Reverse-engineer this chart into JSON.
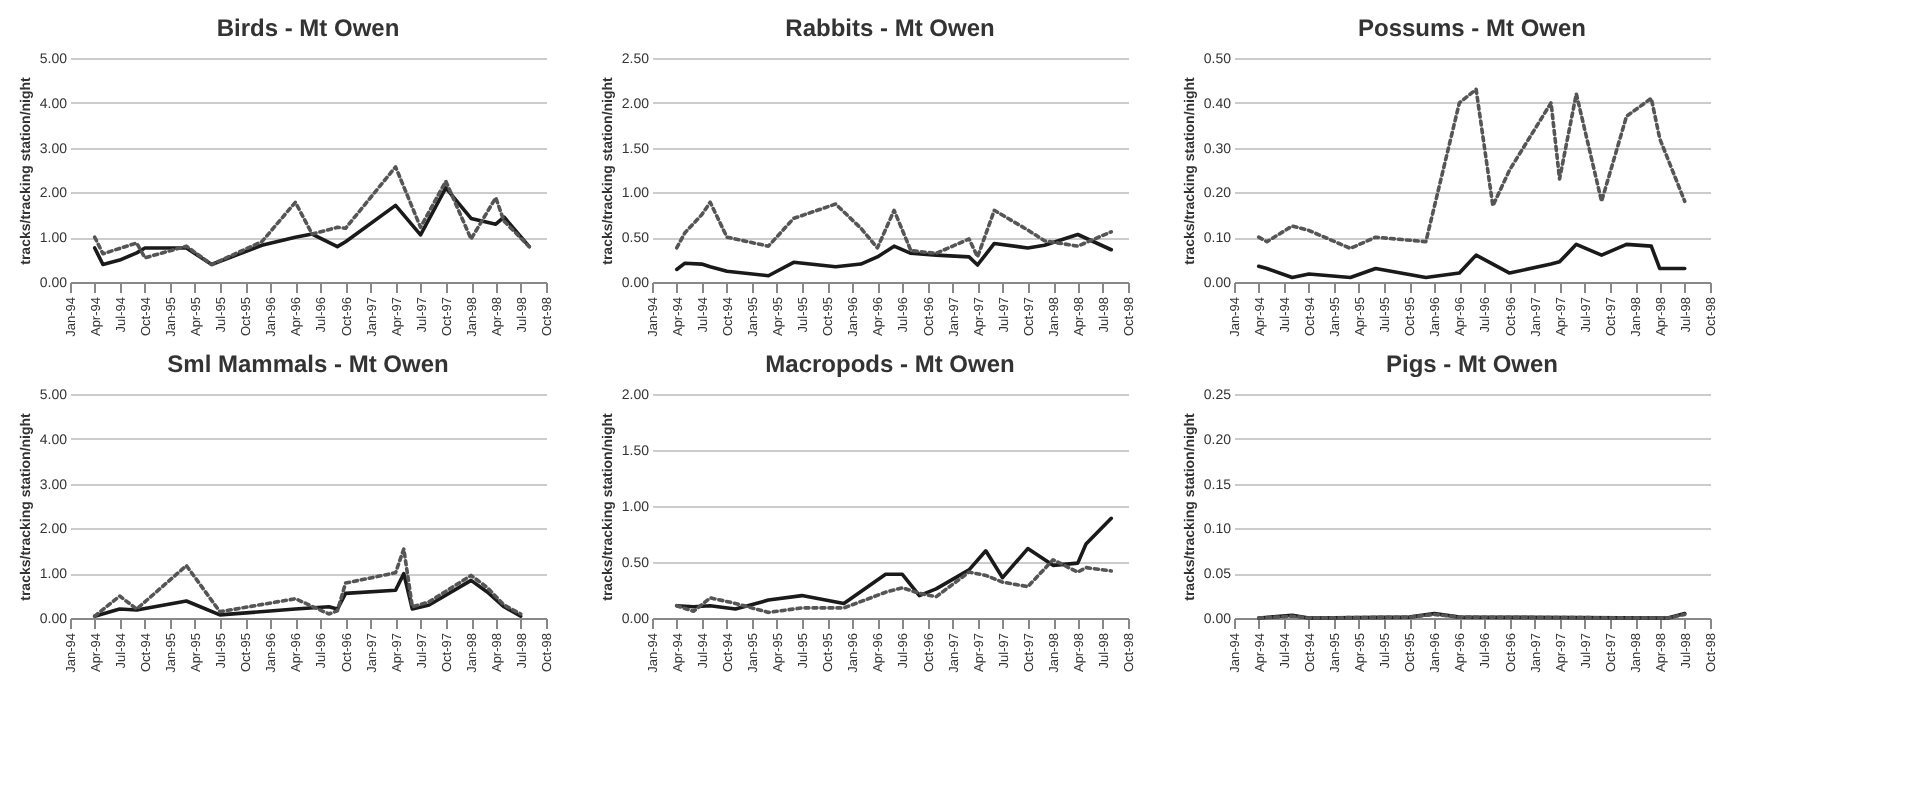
{
  "chart_data": [
    {
      "type": "line",
      "title": "Birds - Mt Owen",
      "ylabel": "tracks/tracking station/night",
      "grid": "y",
      "ylim": [
        0,
        5
      ],
      "yticks": [
        {
          "value": 0,
          "label": "0.00"
        },
        {
          "value": 1,
          "label": "1.00"
        },
        {
          "value": 2,
          "label": "2.00"
        },
        {
          "value": 3,
          "label": "3.00"
        },
        {
          "value": 4,
          "label": "4.00"
        },
        {
          "value": 5,
          "label": "5.00"
        }
      ],
      "xlim": [
        "1994-01",
        "1998-10"
      ],
      "xticks": [
        {
          "value": "1994-01",
          "label": "Jan-94"
        },
        {
          "value": "1994-04",
          "label": "Apr-94"
        },
        {
          "value": "1994-07",
          "label": "Jul-94"
        },
        {
          "value": "1994-10",
          "label": "Oct-94"
        },
        {
          "value": "1995-01",
          "label": "Jan-95"
        },
        {
          "value": "1995-04",
          "label": "Apr-95"
        },
        {
          "value": "1995-07",
          "label": "Jul-95"
        },
        {
          "value": "1995-10",
          "label": "Oct-95"
        },
        {
          "value": "1996-01",
          "label": "Jan-96"
        },
        {
          "value": "1996-04",
          "label": "Apr-96"
        },
        {
          "value": "1996-07",
          "label": "Jul-96"
        },
        {
          "value": "1996-10",
          "label": "Oct-96"
        },
        {
          "value": "1997-01",
          "label": "Jan-97"
        },
        {
          "value": "1997-04",
          "label": "Apr-97"
        },
        {
          "value": "1997-07",
          "label": "Jul-97"
        },
        {
          "value": "1997-10",
          "label": "Oct-97"
        },
        {
          "value": "1998-01",
          "label": "Jan-98"
        },
        {
          "value": "1998-04",
          "label": "Apr-98"
        },
        {
          "value": "1998-07",
          "label": "Jul-98"
        },
        {
          "value": "1998-10",
          "label": "Oct-98"
        }
      ],
      "x": [
        "1994-04",
        "1994-05",
        "1994-07",
        "1994-09",
        "1994-10",
        "1995-03",
        "1995-06",
        "1995-12",
        "1996-04",
        "1996-06",
        "1996-09",
        "1996-10",
        "1997-04",
        "1997-07",
        "1997-10",
        "1998-01",
        "1998-04",
        "1998-05",
        "1998-08"
      ],
      "series": [
        {
          "color": "#1a1a1a",
          "line_style": "solid",
          "values": [
            0.76,
            0.39,
            0.49,
            0.65,
            0.76,
            0.76,
            0.39,
            0.82,
            1.0,
            1.07,
            0.79,
            0.9,
            1.71,
            1.05,
            2.1,
            1.42,
            1.29,
            1.45,
            0.79
          ]
        },
        {
          "color": "#555555",
          "line_style": "dotted",
          "values": [
            1.0,
            0.63,
            0.75,
            0.87,
            0.54,
            0.8,
            0.39,
            0.9,
            1.78,
            1.07,
            1.22,
            1.2,
            2.57,
            1.22,
            2.25,
            0.96,
            1.88,
            1.36,
            0.79
          ]
        }
      ]
    },
    {
      "type": "line",
      "title": "Rabbits - Mt Owen",
      "ylabel": "tracks/tracking station/night",
      "grid": "y",
      "ylim": [
        0,
        2.5
      ],
      "yticks": [
        {
          "value": 0,
          "label": "0.00"
        },
        {
          "value": 0.5,
          "label": "0.50"
        },
        {
          "value": 1,
          "label": "1.00"
        },
        {
          "value": 1.5,
          "label": "1.50"
        },
        {
          "value": 2,
          "label": "2.00"
        },
        {
          "value": 2.5,
          "label": "2.50"
        }
      ],
      "xlim": [
        "1994-01",
        "1998-10"
      ],
      "xticks": [
        {
          "value": "1994-01",
          "label": "Jan-94"
        },
        {
          "value": "1994-04",
          "label": "Apr-94"
        },
        {
          "value": "1994-07",
          "label": "Jul-94"
        },
        {
          "value": "1994-10",
          "label": "Oct-94"
        },
        {
          "value": "1995-01",
          "label": "Jan-95"
        },
        {
          "value": "1995-04",
          "label": "Apr-95"
        },
        {
          "value": "1995-07",
          "label": "Jul-95"
        },
        {
          "value": "1995-10",
          "label": "Oct-95"
        },
        {
          "value": "1996-01",
          "label": "Jan-96"
        },
        {
          "value": "1996-04",
          "label": "Apr-96"
        },
        {
          "value": "1996-07",
          "label": "Jul-96"
        },
        {
          "value": "1996-10",
          "label": "Oct-96"
        },
        {
          "value": "1997-01",
          "label": "Jan-97"
        },
        {
          "value": "1997-04",
          "label": "Apr-97"
        },
        {
          "value": "1997-07",
          "label": "Jul-97"
        },
        {
          "value": "1997-10",
          "label": "Oct-97"
        },
        {
          "value": "1998-01",
          "label": "Jan-98"
        },
        {
          "value": "1998-04",
          "label": "Apr-98"
        },
        {
          "value": "1998-07",
          "label": "Jul-98"
        },
        {
          "value": "1998-10",
          "label": "Oct-98"
        }
      ],
      "x": [
        "1994-04",
        "1994-05",
        "1994-07",
        "1994-08",
        "1994-10",
        "1995-03",
        "1995-06",
        "1995-11",
        "1996-02",
        "1996-04",
        "1996-06",
        "1996-08",
        "1996-11",
        "1997-03",
        "1997-04",
        "1997-06",
        "1997-10",
        "1997-12",
        "1998-04",
        "1998-08"
      ],
      "series": [
        {
          "color": "#1a1a1a",
          "line_style": "solid",
          "values": [
            0.14,
            0.21,
            0.2,
            0.17,
            0.12,
            0.07,
            0.22,
            0.17,
            0.2,
            0.28,
            0.4,
            0.32,
            0.3,
            0.28,
            0.19,
            0.43,
            0.38,
            0.41,
            0.53,
            0.36
          ]
        },
        {
          "color": "#555555",
          "line_style": "dotted",
          "values": [
            0.38,
            0.55,
            0.75,
            0.89,
            0.5,
            0.4,
            0.71,
            0.87,
            0.6,
            0.38,
            0.8,
            0.35,
            0.32,
            0.48,
            0.28,
            0.8,
            0.58,
            0.46,
            0.4,
            0.56
          ]
        }
      ]
    },
    {
      "type": "line",
      "title": "Possums - Mt Owen",
      "ylabel": "tracks/tracking station/night",
      "grid": "y",
      "ylim": [
        0,
        0.5
      ],
      "yticks": [
        {
          "value": 0,
          "label": "0.00"
        },
        {
          "value": 0.1,
          "label": "0.10"
        },
        {
          "value": 0.2,
          "label": "0.20"
        },
        {
          "value": 0.3,
          "label": "0.30"
        },
        {
          "value": 0.4,
          "label": "0.40"
        },
        {
          "value": 0.5,
          "label": "0.50"
        }
      ],
      "xlim": [
        "1994-01",
        "1998-10"
      ],
      "xticks": [
        {
          "value": "1994-01",
          "label": "Jan-94"
        },
        {
          "value": "1994-04",
          "label": "Apr-94"
        },
        {
          "value": "1994-07",
          "label": "Jul-94"
        },
        {
          "value": "1994-10",
          "label": "Oct-94"
        },
        {
          "value": "1995-01",
          "label": "Jan-95"
        },
        {
          "value": "1995-04",
          "label": "Apr-95"
        },
        {
          "value": "1995-07",
          "label": "Jul-95"
        },
        {
          "value": "1995-10",
          "label": "Oct-95"
        },
        {
          "value": "1996-01",
          "label": "Jan-96"
        },
        {
          "value": "1996-04",
          "label": "Apr-96"
        },
        {
          "value": "1996-07",
          "label": "Jul-96"
        },
        {
          "value": "1996-10",
          "label": "Oct-96"
        },
        {
          "value": "1997-01",
          "label": "Jan-97"
        },
        {
          "value": "1997-04",
          "label": "Apr-97"
        },
        {
          "value": "1997-07",
          "label": "Jul-97"
        },
        {
          "value": "1997-10",
          "label": "Oct-97"
        },
        {
          "value": "1998-01",
          "label": "Jan-98"
        },
        {
          "value": "1998-04",
          "label": "Apr-98"
        },
        {
          "value": "1998-07",
          "label": "Jul-98"
        },
        {
          "value": "1998-10",
          "label": "Oct-98"
        }
      ],
      "x": [
        "1994-04",
        "1994-05",
        "1994-08",
        "1994-10",
        "1995-03",
        "1995-06",
        "1995-12",
        "1996-04",
        "1996-06",
        "1996-08",
        "1996-10",
        "1997-03",
        "1997-04",
        "1997-06",
        "1997-09",
        "1997-12",
        "1998-03",
        "1998-04",
        "1998-07"
      ],
      "series": [
        {
          "color": "#1a1a1a",
          "line_style": "solid",
          "values": [
            0.035,
            0.03,
            0.01,
            0.018,
            0.01,
            0.03,
            0.01,
            0.02,
            0.06,
            0.04,
            0.02,
            0.04,
            0.045,
            0.084,
            0.06,
            0.084,
            0.08,
            0.03,
            0.03
          ]
        },
        {
          "color": "#555555",
          "line_style": "dotted",
          "values": [
            0.1,
            0.09,
            0.125,
            0.115,
            0.075,
            0.1,
            0.09,
            0.4,
            0.43,
            0.17,
            0.25,
            0.4,
            0.23,
            0.42,
            0.18,
            0.37,
            0.41,
            0.32,
            0.18
          ]
        }
      ]
    },
    {
      "type": "line",
      "title": "Sml Mammals - Mt Owen",
      "ylabel": "tracks/tracking station/night",
      "grid": "y",
      "ylim": [
        0,
        5
      ],
      "yticks": [
        {
          "value": 0,
          "label": "0.00"
        },
        {
          "value": 1,
          "label": "1.00"
        },
        {
          "value": 2,
          "label": "2.00"
        },
        {
          "value": 3,
          "label": "3.00"
        },
        {
          "value": 4,
          "label": "4.00"
        },
        {
          "value": 5,
          "label": "5.00"
        }
      ],
      "xlim": [
        "1994-01",
        "1998-10"
      ],
      "xticks": [
        {
          "value": "1994-01",
          "label": "Jan-94"
        },
        {
          "value": "1994-04",
          "label": "Apr-94"
        },
        {
          "value": "1994-07",
          "label": "Jul-94"
        },
        {
          "value": "1994-10",
          "label": "Oct-94"
        },
        {
          "value": "1995-01",
          "label": "Jan-95"
        },
        {
          "value": "1995-04",
          "label": "Apr-95"
        },
        {
          "value": "1995-07",
          "label": "Jul-95"
        },
        {
          "value": "1995-10",
          "label": "Oct-95"
        },
        {
          "value": "1996-01",
          "label": "Jan-96"
        },
        {
          "value": "1996-04",
          "label": "Apr-96"
        },
        {
          "value": "1996-07",
          "label": "Jul-96"
        },
        {
          "value": "1996-10",
          "label": "Oct-96"
        },
        {
          "value": "1997-01",
          "label": "Jan-97"
        },
        {
          "value": "1997-04",
          "label": "Apr-97"
        },
        {
          "value": "1997-07",
          "label": "Jul-97"
        },
        {
          "value": "1997-10",
          "label": "Oct-97"
        },
        {
          "value": "1998-01",
          "label": "Jan-98"
        },
        {
          "value": "1998-04",
          "label": "Apr-98"
        },
        {
          "value": "1998-07",
          "label": "Jul-98"
        },
        {
          "value": "1998-10",
          "label": "Oct-98"
        }
      ],
      "x": [
        "1994-04",
        "1994-07",
        "1994-09",
        "1995-03",
        "1995-07",
        "1996-04",
        "1996-08",
        "1996-09",
        "1996-10",
        "1997-04",
        "1997-05",
        "1997-06",
        "1997-08",
        "1998-01",
        "1998-03",
        "1998-05",
        "1998-07"
      ],
      "series": [
        {
          "color": "#1a1a1a",
          "line_style": "solid",
          "values": [
            0.04,
            0.2,
            0.18,
            0.38,
            0.07,
            0.2,
            0.25,
            0.2,
            0.55,
            0.62,
            0.99,
            0.2,
            0.29,
            0.84,
            0.58,
            0.25,
            0.04
          ]
        },
        {
          "color": "#555555",
          "line_style": "dotted",
          "values": [
            0.04,
            0.49,
            0.2,
            1.17,
            0.14,
            0.43,
            0.09,
            0.16,
            0.78,
            1.01,
            1.54,
            0.25,
            0.36,
            0.95,
            0.68,
            0.29,
            0.09
          ]
        }
      ]
    },
    {
      "type": "line",
      "title": "Macropods - Mt Owen",
      "ylabel": "tracks/tracking station/night",
      "grid": "y",
      "ylim": [
        0,
        2
      ],
      "yticks": [
        {
          "value": 0,
          "label": "0.00"
        },
        {
          "value": 0.5,
          "label": "0.50"
        },
        {
          "value": 1,
          "label": "1.00"
        },
        {
          "value": 1.5,
          "label": "1.50"
        },
        {
          "value": 2,
          "label": "2.00"
        }
      ],
      "xlim": [
        "1994-01",
        "1998-10"
      ],
      "xticks": [
        {
          "value": "1994-01",
          "label": "Jan-94"
        },
        {
          "value": "1994-04",
          "label": "Apr-94"
        },
        {
          "value": "1994-07",
          "label": "Jul-94"
        },
        {
          "value": "1994-10",
          "label": "Oct-94"
        },
        {
          "value": "1995-01",
          "label": "Jan-95"
        },
        {
          "value": "1995-04",
          "label": "Apr-95"
        },
        {
          "value": "1995-07",
          "label": "Jul-95"
        },
        {
          "value": "1995-10",
          "label": "Oct-95"
        },
        {
          "value": "1996-01",
          "label": "Jan-96"
        },
        {
          "value": "1996-04",
          "label": "Apr-96"
        },
        {
          "value": "1996-07",
          "label": "Jul-96"
        },
        {
          "value": "1996-10",
          "label": "Oct-96"
        },
        {
          "value": "1997-01",
          "label": "Jan-97"
        },
        {
          "value": "1997-04",
          "label": "Apr-97"
        },
        {
          "value": "1997-07",
          "label": "Jul-97"
        },
        {
          "value": "1997-10",
          "label": "Oct-97"
        },
        {
          "value": "1998-01",
          "label": "Jan-98"
        },
        {
          "value": "1998-04",
          "label": "Apr-98"
        },
        {
          "value": "1998-07",
          "label": "Jul-98"
        },
        {
          "value": "1998-10",
          "label": "Oct-98"
        }
      ],
      "x": [
        "1994-04",
        "1994-06",
        "1994-08",
        "1994-11",
        "1995-03",
        "1995-07",
        "1995-12",
        "1996-05",
        "1996-07",
        "1996-09",
        "1996-11",
        "1997-03",
        "1997-05",
        "1997-07",
        "1997-10",
        "1998-01",
        "1998-04",
        "1998-05",
        "1998-08"
      ],
      "series": [
        {
          "color": "#1a1a1a",
          "line_style": "solid",
          "values": [
            0.11,
            0.1,
            0.11,
            0.08,
            0.16,
            0.2,
            0.13,
            0.39,
            0.39,
            0.2,
            0.26,
            0.43,
            0.6,
            0.36,
            0.62,
            0.47,
            0.49,
            0.66,
            0.89
          ]
        },
        {
          "color": "#555555",
          "line_style": "dotted",
          "values": [
            0.11,
            0.06,
            0.18,
            0.13,
            0.05,
            0.09,
            0.09,
            0.23,
            0.27,
            0.22,
            0.19,
            0.41,
            0.38,
            0.32,
            0.28,
            0.52,
            0.41,
            0.45,
            0.42
          ]
        }
      ]
    },
    {
      "type": "line",
      "title": "Pigs - Mt Owen",
      "ylabel": "tracks/tracking station/night",
      "grid": "y",
      "ylim": [
        0,
        0.25
      ],
      "yticks": [
        {
          "value": 0,
          "label": "0.00"
        },
        {
          "value": 0.05,
          "label": "0.05"
        },
        {
          "value": 0.1,
          "label": "0.10"
        },
        {
          "value": 0.15,
          "label": "0.15"
        },
        {
          "value": 0.2,
          "label": "0.20"
        },
        {
          "value": 0.25,
          "label": "0.25"
        }
      ],
      "xlim": [
        "1994-01",
        "1998-10"
      ],
      "xticks": [
        {
          "value": "1994-01",
          "label": "Jan-94"
        },
        {
          "value": "1994-04",
          "label": "Apr-94"
        },
        {
          "value": "1994-07",
          "label": "Jul-94"
        },
        {
          "value": "1994-10",
          "label": "Oct-94"
        },
        {
          "value": "1995-01",
          "label": "Jan-95"
        },
        {
          "value": "1995-04",
          "label": "Apr-95"
        },
        {
          "value": "1995-07",
          "label": "Jul-95"
        },
        {
          "value": "1995-10",
          "label": "Oct-95"
        },
        {
          "value": "1996-01",
          "label": "Jan-96"
        },
        {
          "value": "1996-04",
          "label": "Apr-96"
        },
        {
          "value": "1996-07",
          "label": "Jul-96"
        },
        {
          "value": "1996-10",
          "label": "Oct-96"
        },
        {
          "value": "1997-01",
          "label": "Jan-97"
        },
        {
          "value": "1997-04",
          "label": "Apr-97"
        },
        {
          "value": "1997-07",
          "label": "Jul-97"
        },
        {
          "value": "1997-10",
          "label": "Oct-97"
        },
        {
          "value": "1998-01",
          "label": "Jan-98"
        },
        {
          "value": "1998-04",
          "label": "Apr-98"
        },
        {
          "value": "1998-07",
          "label": "Jul-98"
        },
        {
          "value": "1998-10",
          "label": "Oct-98"
        }
      ],
      "x": [
        "1994-04",
        "1994-08",
        "1994-10",
        "1995-10",
        "1996-01",
        "1996-04",
        "1998-05",
        "1998-07"
      ],
      "series": [
        {
          "color": "#1a1a1a",
          "line_style": "solid",
          "values": [
            0,
            0.003,
            0,
            0.001,
            0.005,
            0.001,
            0,
            0.005
          ]
        },
        {
          "color": "#555555",
          "line_style": "dotted",
          "values": [
            0,
            0.002,
            0,
            0.001,
            0.004,
            0.001,
            0,
            0.004
          ]
        }
      ]
    }
  ]
}
